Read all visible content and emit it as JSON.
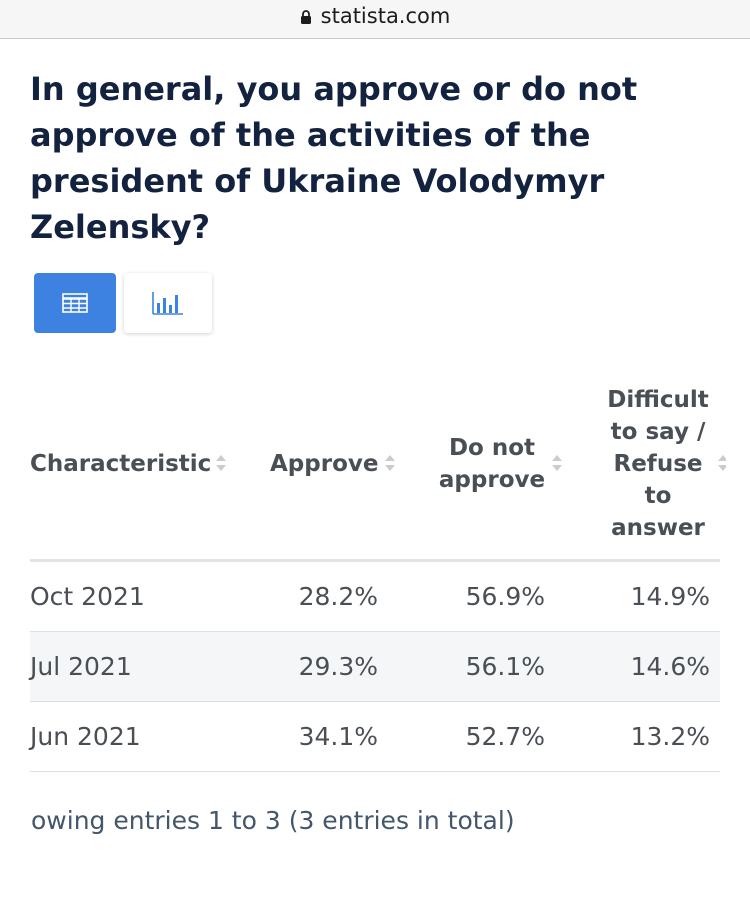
{
  "browser": {
    "url": "statista.com"
  },
  "title": "In general, you approve or do not approve of the activities of the president of Ukraine Volodymyr Zelensky?",
  "view_toggle": {
    "table_icon": "table-icon",
    "chart_icon": "bar-chart-icon",
    "active": "table",
    "active_color": "#3d82e0"
  },
  "table": {
    "columns": [
      {
        "lines": [
          "Characteristic"
        ]
      },
      {
        "lines": [
          "Approve"
        ]
      },
      {
        "lines": [
          "Do not",
          "approve"
        ]
      },
      {
        "lines": [
          "Difficult",
          "to say /",
          "Refuse",
          "to",
          "answer"
        ]
      }
    ],
    "rows": [
      {
        "label": "Oct 2021",
        "values": [
          "28.2%",
          "56.9%",
          "14.9%"
        ]
      },
      {
        "label": "Jul 2021",
        "values": [
          "29.3%",
          "56.1%",
          "14.6%"
        ]
      },
      {
        "label": "Jun 2021",
        "values": [
          "34.1%",
          "52.7%",
          "13.2%"
        ]
      }
    ]
  },
  "footer": "owing entries 1 to 3 (3 entries in total)",
  "chart_data": {
    "type": "table",
    "title": "In general, you approve or do not approve of the activities of the president of Ukraine Volodymyr Zelensky?",
    "columns": [
      "Characteristic",
      "Approve",
      "Do not approve",
      "Difficult to say / Refuse to answer"
    ],
    "categories": [
      "Oct 2021",
      "Jul 2021",
      "Jun 2021"
    ],
    "series": [
      {
        "name": "Approve",
        "values": [
          28.2,
          29.3,
          34.1
        ]
      },
      {
        "name": "Do not approve",
        "values": [
          56.9,
          56.1,
          52.7
        ]
      },
      {
        "name": "Difficult to say / Refuse to answer",
        "values": [
          14.9,
          14.6,
          13.2
        ]
      }
    ]
  }
}
